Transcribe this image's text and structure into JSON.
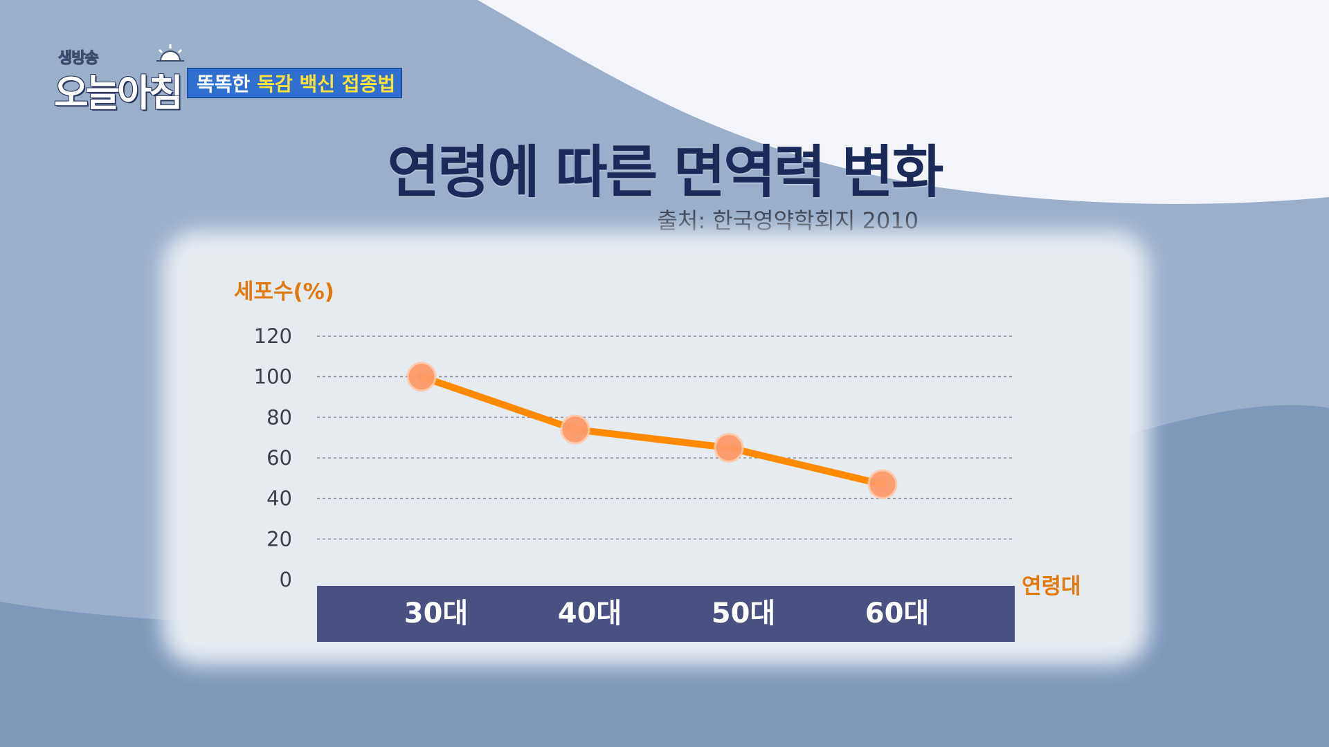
{
  "logo": {
    "small_text": "생방송",
    "main_text": "오늘아침"
  },
  "banner": {
    "white_text": "똑똑한",
    "yellow_text": "독감 백신 접종법"
  },
  "title": "연령에 따른 면역력 변화",
  "source": "출처: 한국영약학회지 2010",
  "colors": {
    "line": "#ff8a00",
    "marker": "#ff9a6a",
    "axis_label": "#e07a10",
    "x_band": "#4a5082",
    "title": "#1c2a5a"
  },
  "chart_data": {
    "type": "line",
    "ylabel": "세포수(%)",
    "xlabel": "연령대",
    "categories": [
      "30대",
      "40대",
      "50대",
      "60대"
    ],
    "series": [
      {
        "values": [
          100,
          74,
          65,
          47
        ]
      }
    ],
    "ylim": [
      0,
      120
    ],
    "yticks": [
      "0",
      "20",
      "40",
      "60",
      "80",
      "100",
      "120"
    ],
    "grid": true
  }
}
